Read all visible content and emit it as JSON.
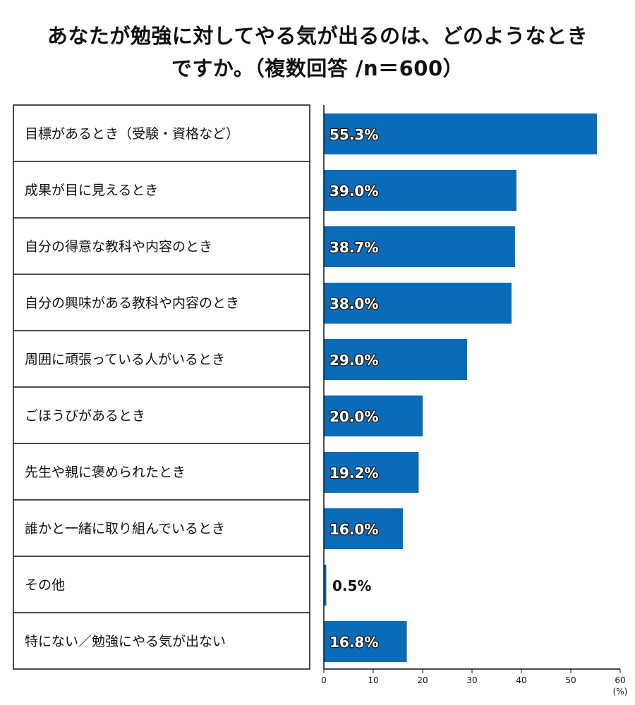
{
  "title_line1": "あなたが勉強に対してやる気が出るのは、どのようなとき",
  "title_line2": "ですか。（複数回答 /n＝600）",
  "chart_data": {
    "type": "bar",
    "orientation": "horizontal",
    "categories": [
      "目標があるとき（受験・資格など）",
      "成果が目に見えるとき",
      "自分の得意な教科や内容のとき",
      "自分の興味がある教科や内容のとき",
      "周囲に頑張っている人がいるとき",
      "ごほうびがあるとき",
      "先生や親に褒められたとき",
      "誰かと一緒に取り組んでいるとき",
      "その他",
      "特にない／勉強にやる気が出ない"
    ],
    "values": [
      55.3,
      39.0,
      38.7,
      38.0,
      29.0,
      20.0,
      19.2,
      16.0,
      0.5,
      16.8
    ],
    "value_labels": [
      "55.3%",
      "39.0%",
      "38.7%",
      "38.0%",
      "29.0%",
      "20.0%",
      "19.2%",
      "16.0%",
      "0.5%",
      "16.8%"
    ],
    "xlim": [
      0,
      60
    ],
    "xticks": [
      "0",
      "10",
      "20",
      "30",
      "40",
      "50",
      "60"
    ],
    "unit_label": "(%)",
    "bar_color": "#0a6cb8"
  }
}
